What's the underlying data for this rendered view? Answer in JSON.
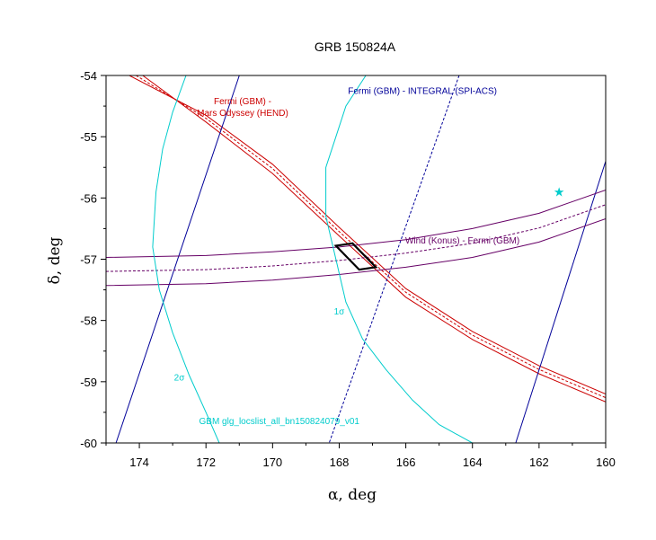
{
  "chart_data": {
    "type": "line",
    "title": "GRB 150824A",
    "xlabel": "α, deg",
    "ylabel": "δ, deg",
    "xlim": [
      175,
      160
    ],
    "ylim": [
      -60,
      -54
    ],
    "x_ticks": [
      174,
      172,
      170,
      168,
      166,
      164,
      162,
      160
    ],
    "y_ticks": [
      -54,
      -55,
      -56,
      -57,
      -58,
      -59,
      -60
    ],
    "x_tick_labels": [
      "174",
      "172",
      "170",
      "168",
      "166",
      "164",
      "162",
      "160"
    ],
    "y_tick_labels": [
      "-54",
      "-55",
      "-56",
      "-57",
      "-58",
      "-59",
      "-60"
    ],
    "x_reversed": true,
    "grid": false,
    "colors": {
      "hend": "#cc0000",
      "integral": "#000099",
      "konus": "#660066",
      "gbm": "#00cccc",
      "box": "#000000"
    },
    "annotations": [
      {
        "text": "Fermi (GBM) -",
        "x": 170.9,
        "y": -54.47,
        "color": "#cc0000"
      },
      {
        "text": "Mars Odyssey (HEND)",
        "x": 170.9,
        "y": -54.66,
        "color": "#cc0000"
      },
      {
        "text": "Fermi (GBM) - INTEGRAL (SPI-ACS)",
        "x": 165.5,
        "y": -54.3,
        "color": "#000099"
      },
      {
        "text": "Wind (Konus) - Fermi (GBM)",
        "x": 164.3,
        "y": -56.74,
        "color": "#660066"
      },
      {
        "text": "1σ",
        "x": 168.0,
        "y": -57.9,
        "color": "#00cccc"
      },
      {
        "text": "2σ",
        "x": 172.8,
        "y": -58.98,
        "color": "#00cccc"
      },
      {
        "text": "GBM glg_locslist_all_bn150824079_v01",
        "x": 169.8,
        "y": -59.69,
        "color": "#00cccc"
      }
    ],
    "series": [
      {
        "style": "hend",
        "dash": false,
        "x": [
          174.3,
          172,
          170,
          168,
          166,
          164,
          162,
          160
        ],
        "y": [
          -54.0,
          -54.65,
          -55.45,
          -56.48,
          -57.48,
          -58.18,
          -58.74,
          -59.2
        ]
      },
      {
        "style": "hend",
        "dash": true,
        "x": [
          174.1,
          172,
          170,
          168,
          166,
          164,
          162,
          160
        ],
        "y": [
          -54.0,
          -54.7,
          -55.52,
          -56.55,
          -57.54,
          -58.24,
          -58.8,
          -59.26
        ]
      },
      {
        "style": "hend",
        "dash": false,
        "x": [
          173.9,
          172,
          170,
          168,
          166,
          164,
          162,
          160
        ],
        "y": [
          -54.0,
          -54.76,
          -55.6,
          -56.62,
          -57.62,
          -58.31,
          -58.87,
          -59.33
        ]
      },
      {
        "style": "integral",
        "dash": false,
        "x": [
          171.0,
          174.7
        ],
        "y": [
          -54.0,
          -60.0
        ]
      },
      {
        "style": "integral",
        "dash": true,
        "x": [
          164.4,
          168.3
        ],
        "y": [
          -54.0,
          -60.0
        ]
      },
      {
        "style": "integral",
        "dash": false,
        "x": [
          160.0,
          162.7
        ],
        "y": [
          -55.4,
          -60.0
        ]
      },
      {
        "style": "konus",
        "dash": false,
        "x": [
          175,
          172,
          170,
          168,
          166,
          164,
          162,
          160
        ],
        "y": [
          -56.97,
          -56.94,
          -56.88,
          -56.8,
          -56.68,
          -56.5,
          -56.25,
          -55.87
        ]
      },
      {
        "style": "konus",
        "dash": true,
        "x": [
          175,
          172,
          170,
          168,
          166,
          164,
          162,
          160
        ],
        "y": [
          -57.2,
          -57.17,
          -57.11,
          -57.02,
          -56.9,
          -56.74,
          -56.49,
          -56.11
        ]
      },
      {
        "style": "konus",
        "dash": false,
        "x": [
          175,
          172,
          170,
          168,
          166,
          164,
          162,
          160
        ],
        "y": [
          -57.43,
          -57.4,
          -57.34,
          -57.25,
          -57.13,
          -56.97,
          -56.72,
          -56.34
        ]
      },
      {
        "style": "gbm",
        "dash": false,
        "x": [
          172.6,
          173.0,
          173.3,
          173.5,
          173.6,
          173.4,
          173.0,
          172.5,
          172.0,
          171.6
        ],
        "y": [
          -54.0,
          -54.6,
          -55.2,
          -55.9,
          -56.8,
          -57.5,
          -58.2,
          -58.9,
          -59.5,
          -60.0
        ]
      },
      {
        "style": "gbm",
        "dash": false,
        "x": [
          167.2,
          167.8,
          168.1,
          168.4,
          168.4,
          168.1,
          167.8,
          167.3,
          166.6,
          165.8,
          165.0,
          164.0
        ],
        "y": [
          -54.0,
          -54.5,
          -55.0,
          -55.5,
          -56.3,
          -57.0,
          -57.7,
          -58.3,
          -58.8,
          -59.3,
          -59.7,
          -60.0
        ]
      },
      {
        "style": "box",
        "dash": false,
        "closed": true,
        "x": [
          168.1,
          167.6,
          166.9,
          167.4
        ],
        "y": [
          -56.78,
          -56.74,
          -57.13,
          -57.17
        ]
      }
    ],
    "markers": [
      {
        "symbol": "★",
        "x": 161.4,
        "y": -55.9,
        "color": "#00cccc"
      }
    ]
  }
}
